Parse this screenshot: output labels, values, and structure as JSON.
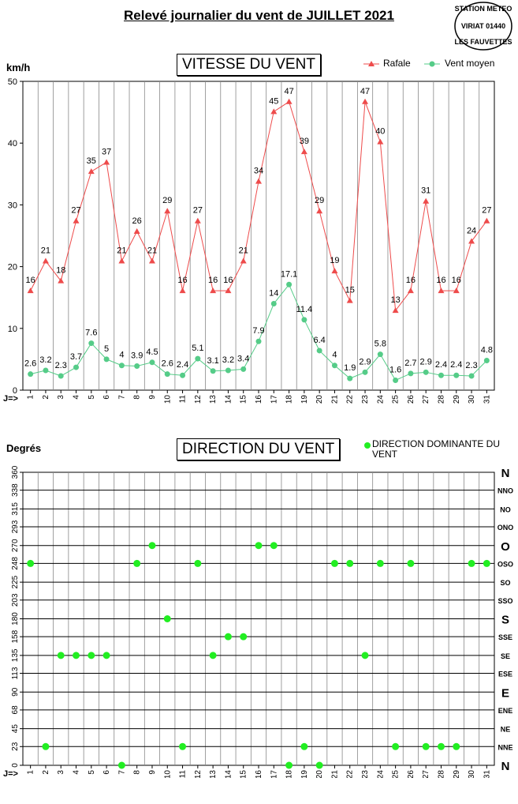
{
  "page": {
    "title": "Relevé journalier du vent de JUILLET 2021",
    "logo_text": [
      "STATION METEO",
      "VIRIAT 01440",
      "LES FAUVETTES"
    ]
  },
  "colors": {
    "rafale": "#ee4b4b",
    "vent_moyen": "#55cc88",
    "direction_point": "#22ee22",
    "grid": "#888888"
  },
  "chart_data": [
    {
      "type": "line",
      "title": "VITESSE DU VENT",
      "ylabel": "km/h",
      "xlabel": "J=>",
      "ylim": [
        0,
        50
      ],
      "yticks": [
        0,
        10,
        20,
        30,
        40,
        50
      ],
      "grid": "vertical",
      "legend_position": "top-right",
      "x": [
        1,
        2,
        3,
        4,
        5,
        6,
        7,
        8,
        9,
        10,
        11,
        12,
        13,
        14,
        15,
        16,
        17,
        18,
        19,
        20,
        21,
        22,
        23,
        24,
        25,
        26,
        27,
        28,
        29,
        30,
        31
      ],
      "series": [
        {
          "name": "Rafale",
          "marker": "triangle",
          "values": [
            16,
            21,
            18,
            27,
            35,
            37,
            21,
            26,
            21,
            29,
            16,
            27,
            16,
            16,
            21,
            34,
            45,
            47,
            39,
            29,
            19,
            15,
            47,
            40,
            13,
            16,
            31,
            16,
            16,
            24,
            27
          ],
          "plot_values": [
            16.1,
            20.9,
            17.7,
            27.4,
            35.4,
            36.9,
            20.9,
            25.7,
            20.9,
            29.0,
            16.1,
            27.4,
            16.1,
            16.1,
            20.9,
            33.8,
            45.1,
            46.7,
            38.6,
            29.0,
            19.3,
            14.5,
            46.7,
            40.2,
            12.9,
            16.1,
            30.6,
            16.1,
            16.1,
            24.1,
            27.4
          ],
          "labels": [
            "16",
            "21",
            "18",
            "27",
            "35",
            "37",
            "21",
            "26",
            "21",
            "29",
            "16",
            "27",
            "16",
            "16",
            "21",
            "34",
            "45",
            "47",
            "39",
            "29",
            "19",
            "15",
            "47",
            "40",
            "13",
            "16",
            "31",
            "16",
            "16",
            "24",
            "27"
          ]
        },
        {
          "name": "Vent moyen",
          "marker": "circle",
          "values": [
            2.6,
            3.2,
            2.3,
            3.7,
            7.6,
            5,
            4,
            3.9,
            4.5,
            2.6,
            2.4,
            5.1,
            3.1,
            3.2,
            3.4,
            7.9,
            14,
            17.1,
            11.4,
            6.4,
            4,
            1.9,
            2.9,
            5.8,
            1.6,
            2.7,
            2.9,
            2.4,
            2.4,
            2.3,
            4.8
          ],
          "labels": [
            "2.6",
            "3.2",
            "2.3",
            "3.7",
            "7.6",
            "5",
            "4",
            "3.9",
            "4.5",
            "2.6",
            "2.4",
            "5.1",
            "3.1",
            "3.2",
            "3.4",
            "7.9",
            "14",
            "17.1",
            "11.4",
            "6.4",
            "4",
            "1.9",
            "2.9",
            "5.8",
            "1.6",
            "2.7",
            "2.9",
            "2.4",
            "2.4",
            "2.3",
            "4.8"
          ]
        }
      ]
    },
    {
      "type": "scatter",
      "title": "DIRECTION DU VENT",
      "ylabel": "Degrés",
      "xlabel": "J=>",
      "ylim": [
        0,
        360
      ],
      "grid": "both",
      "legend_position": "top-right",
      "ytick_values": [
        0,
        23,
        45,
        68,
        90,
        113,
        135,
        158,
        180,
        203,
        225,
        248,
        270,
        293,
        315,
        338,
        360
      ],
      "ytick_labels": [
        "0",
        "23",
        "45",
        "68",
        "90",
        "113",
        "135",
        "158",
        "180",
        "203",
        "225",
        "248",
        "270",
        "293",
        "315",
        "338",
        "360"
      ],
      "compass_labels": [
        "N",
        "NNE",
        "NE",
        "ENE",
        "E",
        "ESE",
        "SE",
        "SSE",
        "S",
        "SSO",
        "SO",
        "OSO",
        "O",
        "ONO",
        "NO",
        "NNO",
        "N"
      ],
      "x": [
        1,
        2,
        3,
        4,
        5,
        6,
        7,
        8,
        9,
        10,
        11,
        12,
        13,
        14,
        15,
        16,
        17,
        18,
        19,
        20,
        21,
        22,
        23,
        24,
        25,
        26,
        27,
        28,
        29,
        30,
        31
      ],
      "series": [
        {
          "name": "DIRECTION DOMINANTE DU VENT",
          "values": [
            248,
            23,
            135,
            135,
            135,
            135,
            0,
            248,
            270,
            180,
            23,
            248,
            135,
            158,
            158,
            270,
            270,
            0,
            23,
            0,
            248,
            248,
            135,
            248,
            23,
            248,
            23,
            23,
            23,
            248,
            248
          ]
        }
      ]
    }
  ]
}
